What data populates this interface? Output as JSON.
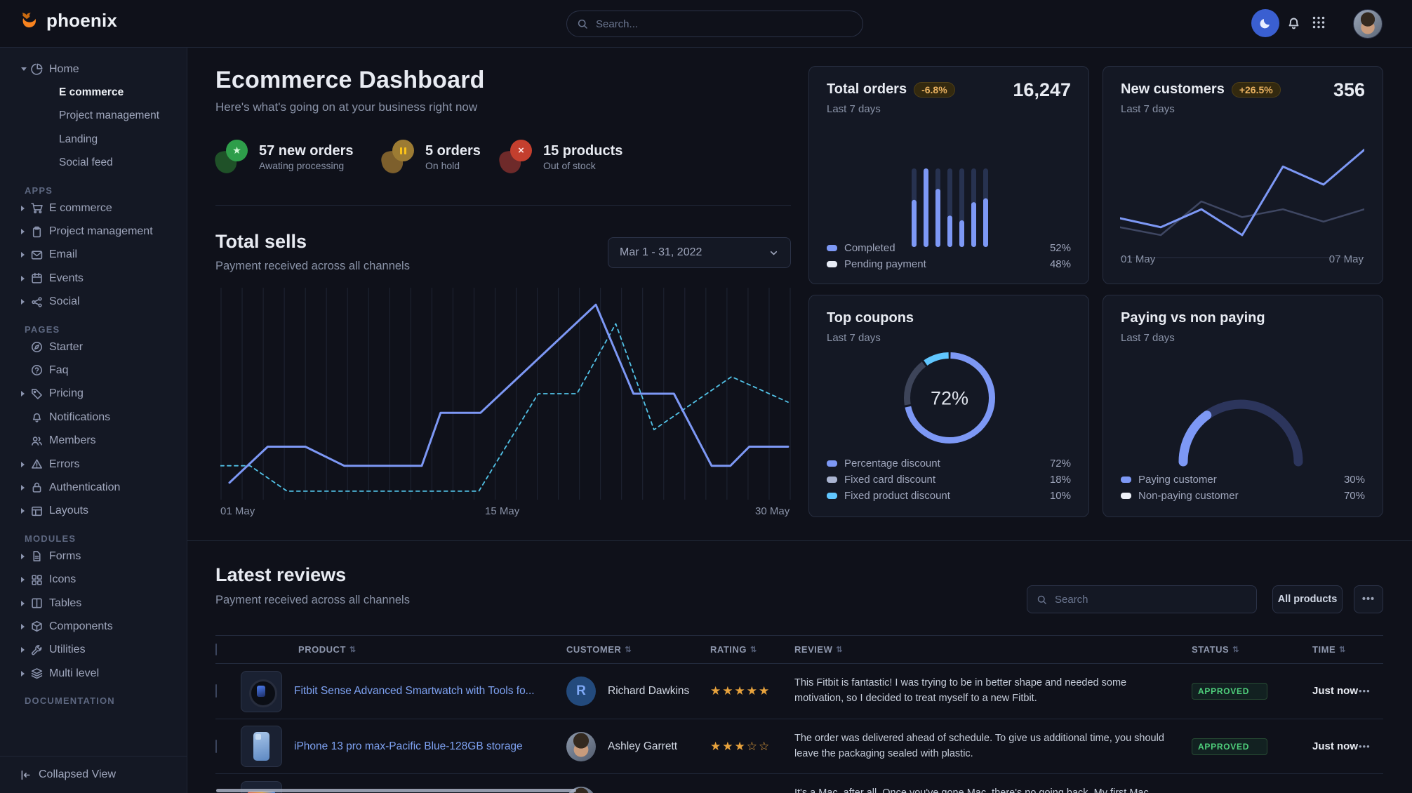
{
  "brand": "phoenix",
  "topnav": {
    "search_placeholder": "Search...",
    "icons": [
      "moon-icon",
      "bell-icon",
      "apps-grid-icon",
      "avatar"
    ]
  },
  "sidebar": {
    "sections": [
      {
        "label": "",
        "items": [
          {
            "icon": "pie",
            "label": "Home",
            "caret": "down",
            "children": [
              {
                "label": "E commerce",
                "active": true
              },
              {
                "label": "Project management",
                "active": false
              },
              {
                "label": "Landing",
                "active": false
              },
              {
                "label": "Social feed",
                "active": false
              }
            ]
          }
        ]
      },
      {
        "label": "APPS",
        "items": [
          {
            "icon": "cart",
            "label": "E commerce",
            "caret": "right"
          },
          {
            "icon": "clipboard",
            "label": "Project management",
            "caret": "right"
          },
          {
            "icon": "mail",
            "label": "Email",
            "caret": "right"
          },
          {
            "icon": "calendar",
            "label": "Events",
            "caret": "right"
          },
          {
            "icon": "share",
            "label": "Social",
            "caret": "right"
          }
        ]
      },
      {
        "label": "PAGES",
        "items": [
          {
            "icon": "compass",
            "label": "Starter",
            "caret": ""
          },
          {
            "icon": "help",
            "label": "Faq",
            "caret": ""
          },
          {
            "icon": "tag",
            "label": "Pricing",
            "caret": "right"
          },
          {
            "icon": "bell",
            "label": "Notifications",
            "caret": ""
          },
          {
            "icon": "users",
            "label": "Members",
            "caret": ""
          },
          {
            "icon": "alert",
            "label": "Errors",
            "caret": "right"
          },
          {
            "icon": "lock",
            "label": "Authentication",
            "caret": "right"
          },
          {
            "icon": "layout",
            "label": "Layouts",
            "caret": "right"
          }
        ]
      },
      {
        "label": "MODULES",
        "items": [
          {
            "icon": "file",
            "label": "Forms",
            "caret": "right"
          },
          {
            "icon": "grid4",
            "label": "Icons",
            "caret": "right"
          },
          {
            "icon": "columns",
            "label": "Tables",
            "caret": "right"
          },
          {
            "icon": "box",
            "label": "Components",
            "caret": "right"
          },
          {
            "icon": "wrench",
            "label": "Utilities",
            "caret": "right"
          },
          {
            "icon": "layers",
            "label": "Multi level",
            "caret": "right"
          }
        ]
      },
      {
        "label": "DOCUMENTATION",
        "items": []
      }
    ],
    "footer_label": "Collapsed View"
  },
  "page": {
    "title": "Ecommerce Dashboard",
    "subtitle": "Here's what's going on at your business right now"
  },
  "stats": [
    {
      "icon": "star",
      "color": "green",
      "value": "57 new orders",
      "caption": "Awating processing"
    },
    {
      "icon": "pause",
      "color": "amber",
      "value": "5 orders",
      "caption": "On hold"
    },
    {
      "icon": "x",
      "color": "red",
      "value": "15 products",
      "caption": "Out of stock"
    }
  ],
  "total_sells": {
    "title": "Total sells",
    "subtitle": "Payment received across all channels",
    "range_value": "Mar 1 - 31, 2022"
  },
  "cards": {
    "total_orders": {
      "title": "Total orders",
      "badge": "-6.8%",
      "period": "Last 7 days",
      "value": "16,247",
      "legend": [
        {
          "label": "Completed",
          "value": "52%",
          "color": "#7d98f5"
        },
        {
          "label": "Pending payment",
          "value": "48%",
          "color": "#e8ecf6"
        }
      ]
    },
    "new_customers": {
      "title": "New customers",
      "badge": "+26.5%",
      "period": "Last 7 days",
      "value": "356",
      "x_labels": [
        "01 May",
        "07 May"
      ]
    },
    "top_coupons": {
      "title": "Top coupons",
      "period": "Last 7 days",
      "center_value": "72%",
      "legend": [
        {
          "label": "Percentage discount",
          "value": "72%",
          "color": "#7d98f5"
        },
        {
          "label": "Fixed card discount",
          "value": "18%",
          "color": "#aab4d1"
        },
        {
          "label": "Fixed product discount",
          "value": "10%",
          "color": "#60c6ff"
        }
      ]
    },
    "paying": {
      "title": "Paying vs non paying",
      "period": "Last 7 days",
      "legend": [
        {
          "label": "Paying customer",
          "value": "30%",
          "color": "#7d98f5"
        },
        {
          "label": "Non-paying customer",
          "value": "70%",
          "color": "#eef1f8"
        }
      ]
    }
  },
  "chart_data": [
    {
      "id": "total-sells",
      "type": "line",
      "title": "Total sells",
      "x_labels": [
        "01 May",
        "15 May",
        "30 May"
      ],
      "grid": "vertical-only",
      "legend_position": "none",
      "note": "points are [x_fraction, y_fraction_of_plot_height from bottom]",
      "series": [
        {
          "name": "current period",
          "style": "solid",
          "color": "#7d98f5",
          "points": [
            [
              0.016,
              0.08
            ],
            [
              0.083,
              0.25
            ],
            [
              0.149,
              0.25
            ],
            [
              0.217,
              0.16
            ],
            [
              0.353,
              0.16
            ],
            [
              0.386,
              0.41
            ],
            [
              0.456,
              0.41
            ],
            [
              0.658,
              0.92
            ],
            [
              0.724,
              0.5
            ],
            [
              0.795,
              0.5
            ],
            [
              0.861,
              0.16
            ],
            [
              0.894,
              0.16
            ],
            [
              0.927,
              0.25
            ],
            [
              0.995,
              0.25
            ]
          ]
        },
        {
          "name": "previous period",
          "style": "dashed",
          "color": "#52c3e8",
          "points": [
            [
              0.0,
              0.16
            ],
            [
              0.052,
              0.16
            ],
            [
              0.117,
              0.04
            ],
            [
              0.453,
              0.04
            ],
            [
              0.557,
              0.5
            ],
            [
              0.625,
              0.5
            ],
            [
              0.693,
              0.83
            ],
            [
              0.76,
              0.33
            ],
            [
              0.896,
              0.58
            ],
            [
              0.995,
              0.46
            ]
          ]
        }
      ]
    },
    {
      "id": "total-orders",
      "type": "bar",
      "title": "Total orders (last 7 days)",
      "value_total": "16,247",
      "change": "-6.8%",
      "values_pct_of_max": [
        60,
        100,
        74,
        40,
        34,
        57,
        62
      ],
      "completed_pct": 52,
      "pending_payment_pct": 48,
      "bar_color": "#7d98f5",
      "track_color": "#273250"
    },
    {
      "id": "new-customers",
      "type": "line",
      "title": "New customers (last 7 days)",
      "value_total": "356",
      "change": "+26.5%",
      "x_labels": [
        "01 May",
        "07 May"
      ],
      "series": [
        {
          "name": "current",
          "style": "solid",
          "color": "#7d98f5",
          "points": [
            [
              0,
              0.3
            ],
            [
              0.167,
              0.22
            ],
            [
              0.333,
              0.38
            ],
            [
              0.5,
              0.15
            ],
            [
              0.667,
              0.76
            ],
            [
              0.833,
              0.6
            ],
            [
              1,
              0.91
            ]
          ]
        },
        {
          "name": "previous",
          "style": "solid",
          "color": "#3f4763",
          "points": [
            [
              0,
              0.22
            ],
            [
              0.167,
              0.15
            ],
            [
              0.333,
              0.45
            ],
            [
              0.5,
              0.31
            ],
            [
              0.667,
              0.38
            ],
            [
              0.833,
              0.27
            ],
            [
              1,
              0.38
            ]
          ]
        }
      ]
    },
    {
      "id": "top-coupons",
      "type": "donut",
      "title": "Top coupons (last 7 days)",
      "center": "72%",
      "slices": [
        {
          "label": "Percentage discount",
          "value": 72,
          "color": "#7d98f5"
        },
        {
          "label": "Fixed card discount",
          "value": 18,
          "color": "#3d4459"
        },
        {
          "label": "Fixed product discount",
          "value": 10,
          "color": "#60c6ff"
        }
      ]
    },
    {
      "id": "paying-gauge",
      "type": "half-donut",
      "title": "Paying vs non paying (last 7 days)",
      "slices": [
        {
          "label": "Paying customer",
          "value": 30,
          "color": "#7d98f5"
        },
        {
          "label": "Non-paying customer",
          "value": 70,
          "color": "#2c355c"
        }
      ]
    }
  ],
  "reviews": {
    "title": "Latest reviews",
    "subtitle": "Payment received across all channels",
    "search_placeholder": "Search",
    "filter_button": "All products",
    "menu_button": "...",
    "columns": [
      "PRODUCT",
      "CUSTOMER",
      "RATING",
      "REVIEW",
      "STATUS",
      "TIME"
    ],
    "rows": [
      {
        "thumb": "watch",
        "product": "Fitbit Sense Advanced Smartwatch with Tools fo...",
        "customer": "Richard Dawkins",
        "avatar_type": "letter",
        "avatar_text": "R",
        "rating": 5,
        "rating_max": 5,
        "review": "This Fitbit is fantastic! I was trying to be in better shape and needed some motivation, so I decided to treat myself to a new Fitbit.",
        "status": "APPROVED",
        "time": "Just now"
      },
      {
        "thumb": "phone",
        "product": "iPhone 13 pro max-Pacific Blue-128GB storage",
        "customer": "Ashley Garrett",
        "avatar_type": "photo",
        "avatar_text": "",
        "rating": 3,
        "rating_max": 5,
        "review": "The order was delivered ahead of schedule. To give us additional time, you should leave the packaging sealed with plastic.",
        "status": "APPROVED",
        "time": "Just now"
      },
      {
        "thumb": "mac",
        "product": "",
        "customer": "",
        "avatar_type": "photo",
        "avatar_text": "",
        "rating": 0,
        "rating_max": 5,
        "review": "It's a Mac, after all. Once you've gone Mac, there's no going back. My first Mac lasted...",
        "status": "",
        "time": ""
      }
    ]
  }
}
